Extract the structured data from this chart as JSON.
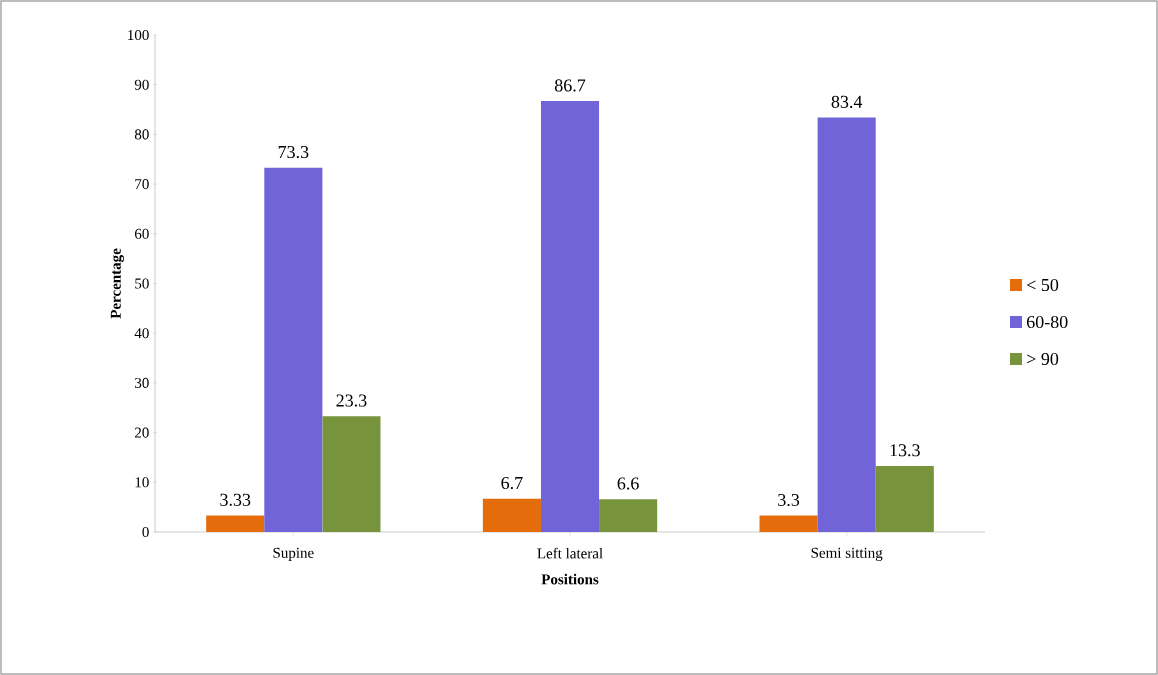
{
  "chart_data": {
    "type": "bar",
    "xlabel": "Positions",
    "ylabel": "Percentage",
    "categories": [
      "Supine",
      "Left lateral",
      "Semi sitting"
    ],
    "series": [
      {
        "name": "< 50",
        "color": "#e46c0a",
        "values": [
          3.33,
          6.7,
          3.3
        ],
        "value_labels": [
          "3.33",
          "6.7",
          "3.3"
        ]
      },
      {
        "name": "60-80",
        "color": "#7064d8",
        "values": [
          73.3,
          86.7,
          83.4
        ],
        "value_labels": [
          "73.3",
          "86.7",
          "83.4"
        ]
      },
      {
        "name": "> 90",
        "color": "#77933c",
        "values": [
          23.3,
          6.6,
          13.3
        ],
        "value_labels": [
          "23.3",
          "6.6",
          "13.3"
        ]
      }
    ],
    "ylim": [
      0,
      100
    ],
    "yticks": [
      0,
      10,
      20,
      30,
      40,
      50,
      60,
      70,
      80,
      90,
      100
    ],
    "legend": "right"
  }
}
